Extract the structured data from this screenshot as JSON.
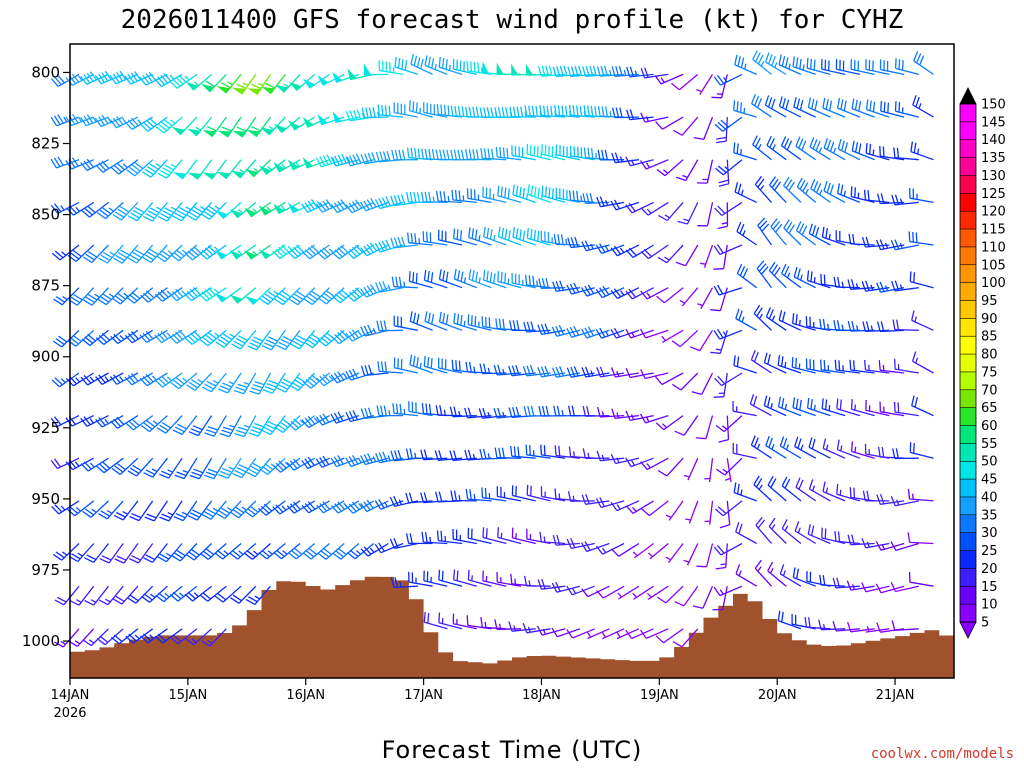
{
  "chart_data": {
    "type": "wind-barb-time-height",
    "title": "2026011400 GFS forecast wind profile (kt) for CYHZ",
    "xlabel": "Forecast Time (UTC)",
    "credit": "coolwx.com/models",
    "x_ticks": [
      {
        "day": 0,
        "label": "14JAN",
        "sublabel": "2026"
      },
      {
        "day": 1,
        "label": "15JAN"
      },
      {
        "day": 2,
        "label": "16JAN"
      },
      {
        "day": 3,
        "label": "17JAN"
      },
      {
        "day": 4,
        "label": "18JAN"
      },
      {
        "day": 5,
        "label": "19JAN"
      },
      {
        "day": 6,
        "label": "20JAN"
      },
      {
        "day": 7,
        "label": "21JAN"
      }
    ],
    "x_range_days": [
      0,
      7.5
    ],
    "y_ticks": [
      800,
      825,
      850,
      875,
      900,
      925,
      950,
      975,
      1000
    ],
    "y_range_hpa": [
      790,
      1013
    ],
    "levels_hpa": [
      800,
      815,
      830,
      845,
      860,
      875,
      890,
      905,
      920,
      935,
      950,
      965,
      980,
      995
    ],
    "time_step_hours": 3,
    "speed_keyframes": [
      {
        "day": 0.0,
        "speed_top": 32,
        "speed_bottom": 18
      },
      {
        "day": 1.0,
        "speed_top": 50,
        "speed_bottom": 20
      },
      {
        "day": 1.6,
        "speed_top": 66,
        "speed_bottom": 22
      },
      {
        "day": 2.2,
        "speed_top": 48,
        "speed_bottom": 25
      },
      {
        "day": 2.8,
        "speed_top": 45,
        "speed_bottom": 22
      },
      {
        "day": 3.2,
        "speed_top": 38,
        "speed_bottom": 18
      },
      {
        "day": 4.0,
        "speed_top": 52,
        "speed_bottom": 12
      },
      {
        "day": 4.5,
        "speed_top": 40,
        "speed_bottom": 10
      },
      {
        "day": 5.0,
        "speed_top": 18,
        "speed_bottom": 6
      },
      {
        "day": 5.4,
        "speed_top": 10,
        "speed_bottom": 6
      },
      {
        "day": 5.7,
        "speed_top": 30,
        "speed_bottom": 15
      },
      {
        "day": 6.3,
        "speed_top": 35,
        "speed_bottom": 18
      },
      {
        "day": 6.9,
        "speed_top": 28,
        "speed_bottom": 10
      },
      {
        "day": 7.5,
        "speed_top": 30,
        "speed_bottom": 12
      }
    ],
    "direction_keyframes": [
      {
        "day": 0.0,
        "dir_deg": 240
      },
      {
        "day": 1.6,
        "dir_deg": 225
      },
      {
        "day": 2.5,
        "dir_deg": 250
      },
      {
        "day": 3.0,
        "dir_deg": 285
      },
      {
        "day": 4.0,
        "dir_deg": 280
      },
      {
        "day": 5.0,
        "dir_deg": 250
      },
      {
        "day": 5.5,
        "dir_deg": 190
      },
      {
        "day": 5.8,
        "dir_deg": 320
      },
      {
        "day": 6.5,
        "dir_deg": 290
      },
      {
        "day": 7.1,
        "dir_deg": 270
      },
      {
        "day": 7.5,
        "dir_deg": 330
      }
    ],
    "terrain_surface_hpa": [
      {
        "day": 0.0,
        "p": 1004
      },
      {
        "day": 0.25,
        "p": 1003
      },
      {
        "day": 0.5,
        "p": 1000
      },
      {
        "day": 0.75,
        "p": 998
      },
      {
        "day": 1.0,
        "p": 998
      },
      {
        "day": 1.25,
        "p": 998
      },
      {
        "day": 1.4,
        "p": 996
      },
      {
        "day": 1.55,
        "p": 990
      },
      {
        "day": 1.65,
        "p": 983
      },
      {
        "day": 1.85,
        "p": 978
      },
      {
        "day": 2.0,
        "p": 980
      },
      {
        "day": 2.2,
        "p": 982
      },
      {
        "day": 2.4,
        "p": 979
      },
      {
        "day": 2.6,
        "p": 977
      },
      {
        "day": 2.8,
        "p": 978
      },
      {
        "day": 2.95,
        "p": 986
      },
      {
        "day": 3.05,
        "p": 996
      },
      {
        "day": 3.15,
        "p": 1003
      },
      {
        "day": 3.3,
        "p": 1007
      },
      {
        "day": 3.6,
        "p": 1008
      },
      {
        "day": 3.75,
        "p": 1006
      },
      {
        "day": 4.0,
        "p": 1005
      },
      {
        "day": 4.4,
        "p": 1006
      },
      {
        "day": 4.8,
        "p": 1007
      },
      {
        "day": 5.0,
        "p": 1007
      },
      {
        "day": 5.1,
        "p": 1005
      },
      {
        "day": 5.25,
        "p": 1000
      },
      {
        "day": 5.4,
        "p": 993
      },
      {
        "day": 5.55,
        "p": 988
      },
      {
        "day": 5.7,
        "p": 983
      },
      {
        "day": 5.85,
        "p": 987
      },
      {
        "day": 6.0,
        "p": 996
      },
      {
        "day": 6.25,
        "p": 1001
      },
      {
        "day": 6.5,
        "p": 1002
      },
      {
        "day": 6.8,
        "p": 1000
      },
      {
        "day": 7.1,
        "p": 998
      },
      {
        "day": 7.3,
        "p": 996
      },
      {
        "day": 7.5,
        "p": 999
      }
    ],
    "colorbar": {
      "levels": [
        5,
        10,
        15,
        20,
        25,
        30,
        35,
        40,
        45,
        50,
        55,
        60,
        65,
        70,
        75,
        80,
        85,
        90,
        95,
        100,
        105,
        110,
        115,
        120,
        125,
        130,
        135,
        140,
        145,
        150
      ],
      "labels": [
        "5",
        "10",
        "15",
        "20",
        "25",
        "30",
        "35",
        "40",
        "45",
        "50",
        "55",
        "60",
        "65",
        "70",
        "75",
        "80",
        "85",
        "90",
        "95",
        "100",
        "105",
        "110",
        "115",
        "120",
        "125",
        "130",
        "135",
        "140",
        "145",
        "150"
      ],
      "colors": [
        "#8a00ff",
        "#6a00ff",
        "#3c1eff",
        "#0a28ff",
        "#0050ff",
        "#0a78ff",
        "#14a0ff",
        "#00c0ff",
        "#00e6e6",
        "#00e6b4",
        "#00e678",
        "#28e628",
        "#78e600",
        "#b4ff00",
        "#e6ff00",
        "#ffff00",
        "#ffe600",
        "#ffc800",
        "#ffaa00",
        "#ff9600",
        "#ff7800",
        "#ff5a00",
        "#ff2800",
        "#ff0000",
        "#ff0050",
        "#ff0096",
        "#ff00c8",
        "#ff00ff",
        "#ff00ff"
      ],
      "over_color": "#000000",
      "under_color": "#8a00ff"
    },
    "terrain_color": "#a0522d"
  }
}
